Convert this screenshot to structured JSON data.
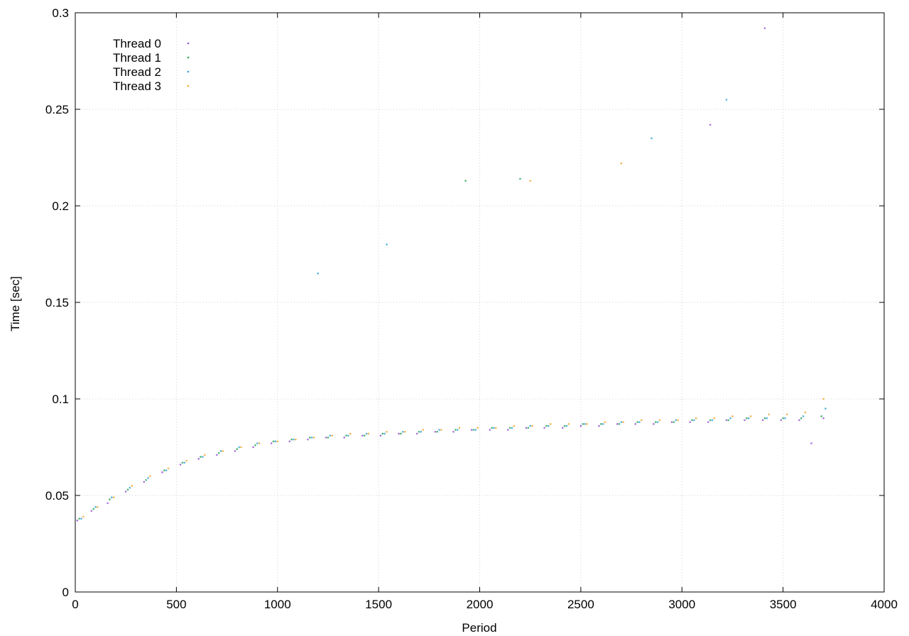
{
  "chart_data": {
    "type": "scatter",
    "title": "",
    "xlabel": "Period",
    "ylabel": "Time [sec]",
    "xlim": [
      0,
      4000
    ],
    "ylim": [
      0,
      0.3
    ],
    "xticks": [
      0,
      500,
      1000,
      1500,
      2000,
      2500,
      3000,
      3500,
      4000
    ],
    "yticks": [
      0,
      0.05,
      0.1,
      0.15,
      0.2,
      0.25,
      0.3
    ],
    "xtick_labels": [
      "0",
      "500",
      "1000",
      "1500",
      "2000",
      "2500",
      "3000",
      "3500",
      "4000"
    ],
    "ytick_labels": [
      "0",
      "0.05",
      "0.1",
      "0.15",
      "0.2",
      "0.25",
      "0.3"
    ],
    "grid": true,
    "legend_position": "top-left",
    "series": [
      {
        "name": "Thread 0",
        "color": "#9b59d6",
        "points": [
          [
            10,
            0.037
          ],
          [
            80,
            0.042
          ],
          [
            160,
            0.046
          ],
          [
            250,
            0.052
          ],
          [
            340,
            0.057
          ],
          [
            430,
            0.062
          ],
          [
            520,
            0.066
          ],
          [
            610,
            0.069
          ],
          [
            700,
            0.071
          ],
          [
            790,
            0.073
          ],
          [
            880,
            0.075
          ],
          [
            970,
            0.077
          ],
          [
            1060,
            0.078
          ],
          [
            1150,
            0.079
          ],
          [
            1240,
            0.08
          ],
          [
            1330,
            0.08
          ],
          [
            1420,
            0.081
          ],
          [
            1510,
            0.081
          ],
          [
            1600,
            0.082
          ],
          [
            1690,
            0.082
          ],
          [
            1780,
            0.083
          ],
          [
            1870,
            0.083
          ],
          [
            1960,
            0.084
          ],
          [
            2050,
            0.084
          ],
          [
            2140,
            0.084
          ],
          [
            2230,
            0.085
          ],
          [
            2320,
            0.085
          ],
          [
            2410,
            0.085
          ],
          [
            2500,
            0.086
          ],
          [
            2590,
            0.086
          ],
          [
            2680,
            0.087
          ],
          [
            2770,
            0.087
          ],
          [
            2860,
            0.087
          ],
          [
            2950,
            0.088
          ],
          [
            3040,
            0.088
          ],
          [
            3130,
            0.088
          ],
          [
            3220,
            0.089
          ],
          [
            3310,
            0.089
          ],
          [
            3400,
            0.089
          ],
          [
            3490,
            0.089
          ],
          [
            3580,
            0.089
          ],
          [
            3640,
            0.077
          ],
          [
            3700,
            0.09
          ],
          [
            3140,
            0.242
          ],
          [
            3410,
            0.292
          ]
        ]
      },
      {
        "name": "Thread 1",
        "color": "#2ea85a",
        "points": [
          [
            20,
            0.038
          ],
          [
            90,
            0.043
          ],
          [
            170,
            0.048
          ],
          [
            260,
            0.053
          ],
          [
            350,
            0.058
          ],
          [
            440,
            0.063
          ],
          [
            530,
            0.067
          ],
          [
            620,
            0.07
          ],
          [
            710,
            0.072
          ],
          [
            800,
            0.074
          ],
          [
            890,
            0.076
          ],
          [
            980,
            0.078
          ],
          [
            1070,
            0.079
          ],
          [
            1160,
            0.08
          ],
          [
            1250,
            0.08
          ],
          [
            1340,
            0.081
          ],
          [
            1430,
            0.081
          ],
          [
            1520,
            0.082
          ],
          [
            1610,
            0.082
          ],
          [
            1700,
            0.083
          ],
          [
            1790,
            0.083
          ],
          [
            1880,
            0.084
          ],
          [
            1970,
            0.084
          ],
          [
            2060,
            0.085
          ],
          [
            2150,
            0.085
          ],
          [
            2240,
            0.085
          ],
          [
            2330,
            0.086
          ],
          [
            2420,
            0.086
          ],
          [
            2510,
            0.087
          ],
          [
            2600,
            0.087
          ],
          [
            2690,
            0.087
          ],
          [
            2780,
            0.088
          ],
          [
            2870,
            0.088
          ],
          [
            2960,
            0.088
          ],
          [
            3050,
            0.089
          ],
          [
            3140,
            0.089
          ],
          [
            3230,
            0.089
          ],
          [
            3320,
            0.09
          ],
          [
            3410,
            0.09
          ],
          [
            3500,
            0.09
          ],
          [
            3590,
            0.09
          ],
          [
            3690,
            0.091
          ],
          [
            1930,
            0.213
          ],
          [
            2200,
            0.214
          ]
        ]
      },
      {
        "name": "Thread 2",
        "color": "#3aa6d8",
        "points": [
          [
            30,
            0.038
          ],
          [
            100,
            0.044
          ],
          [
            180,
            0.049
          ],
          [
            270,
            0.054
          ],
          [
            360,
            0.059
          ],
          [
            450,
            0.063
          ],
          [
            540,
            0.067
          ],
          [
            630,
            0.07
          ],
          [
            720,
            0.073
          ],
          [
            810,
            0.075
          ],
          [
            900,
            0.077
          ],
          [
            990,
            0.078
          ],
          [
            1080,
            0.079
          ],
          [
            1170,
            0.08
          ],
          [
            1260,
            0.081
          ],
          [
            1350,
            0.081
          ],
          [
            1440,
            0.082
          ],
          [
            1530,
            0.082
          ],
          [
            1620,
            0.083
          ],
          [
            1710,
            0.083
          ],
          [
            1800,
            0.084
          ],
          [
            1890,
            0.084
          ],
          [
            1980,
            0.084
          ],
          [
            2070,
            0.085
          ],
          [
            2160,
            0.085
          ],
          [
            2250,
            0.086
          ],
          [
            2340,
            0.086
          ],
          [
            2430,
            0.086
          ],
          [
            2520,
            0.087
          ],
          [
            2610,
            0.087
          ],
          [
            2700,
            0.088
          ],
          [
            2790,
            0.088
          ],
          [
            2880,
            0.088
          ],
          [
            2970,
            0.089
          ],
          [
            3060,
            0.089
          ],
          [
            3150,
            0.089
          ],
          [
            3240,
            0.09
          ],
          [
            3330,
            0.09
          ],
          [
            3420,
            0.09
          ],
          [
            3510,
            0.09
          ],
          [
            3600,
            0.091
          ],
          [
            3710,
            0.095
          ],
          [
            1200,
            0.165
          ],
          [
            1540,
            0.18
          ],
          [
            2850,
            0.235
          ],
          [
            3220,
            0.255
          ]
        ]
      },
      {
        "name": "Thread 3",
        "color": "#f0a830",
        "points": [
          [
            40,
            0.039
          ],
          [
            110,
            0.044
          ],
          [
            190,
            0.049
          ],
          [
            280,
            0.055
          ],
          [
            370,
            0.06
          ],
          [
            460,
            0.064
          ],
          [
            550,
            0.068
          ],
          [
            640,
            0.071
          ],
          [
            730,
            0.073
          ],
          [
            820,
            0.075
          ],
          [
            910,
            0.077
          ],
          [
            1000,
            0.078
          ],
          [
            1090,
            0.079
          ],
          [
            1180,
            0.08
          ],
          [
            1270,
            0.081
          ],
          [
            1360,
            0.082
          ],
          [
            1450,
            0.082
          ],
          [
            1540,
            0.083
          ],
          [
            1630,
            0.083
          ],
          [
            1720,
            0.084
          ],
          [
            1810,
            0.084
          ],
          [
            1900,
            0.085
          ],
          [
            1990,
            0.085
          ],
          [
            2080,
            0.085
          ],
          [
            2170,
            0.086
          ],
          [
            2260,
            0.086
          ],
          [
            2350,
            0.087
          ],
          [
            2440,
            0.087
          ],
          [
            2530,
            0.087
          ],
          [
            2620,
            0.088
          ],
          [
            2710,
            0.088
          ],
          [
            2800,
            0.089
          ],
          [
            2890,
            0.089
          ],
          [
            2980,
            0.089
          ],
          [
            3070,
            0.09
          ],
          [
            3160,
            0.09
          ],
          [
            3250,
            0.091
          ],
          [
            3340,
            0.091
          ],
          [
            3430,
            0.092
          ],
          [
            3520,
            0.092
          ],
          [
            3610,
            0.093
          ],
          [
            3700,
            0.1
          ],
          [
            2250,
            0.213
          ],
          [
            2700,
            0.222
          ]
        ]
      }
    ]
  }
}
